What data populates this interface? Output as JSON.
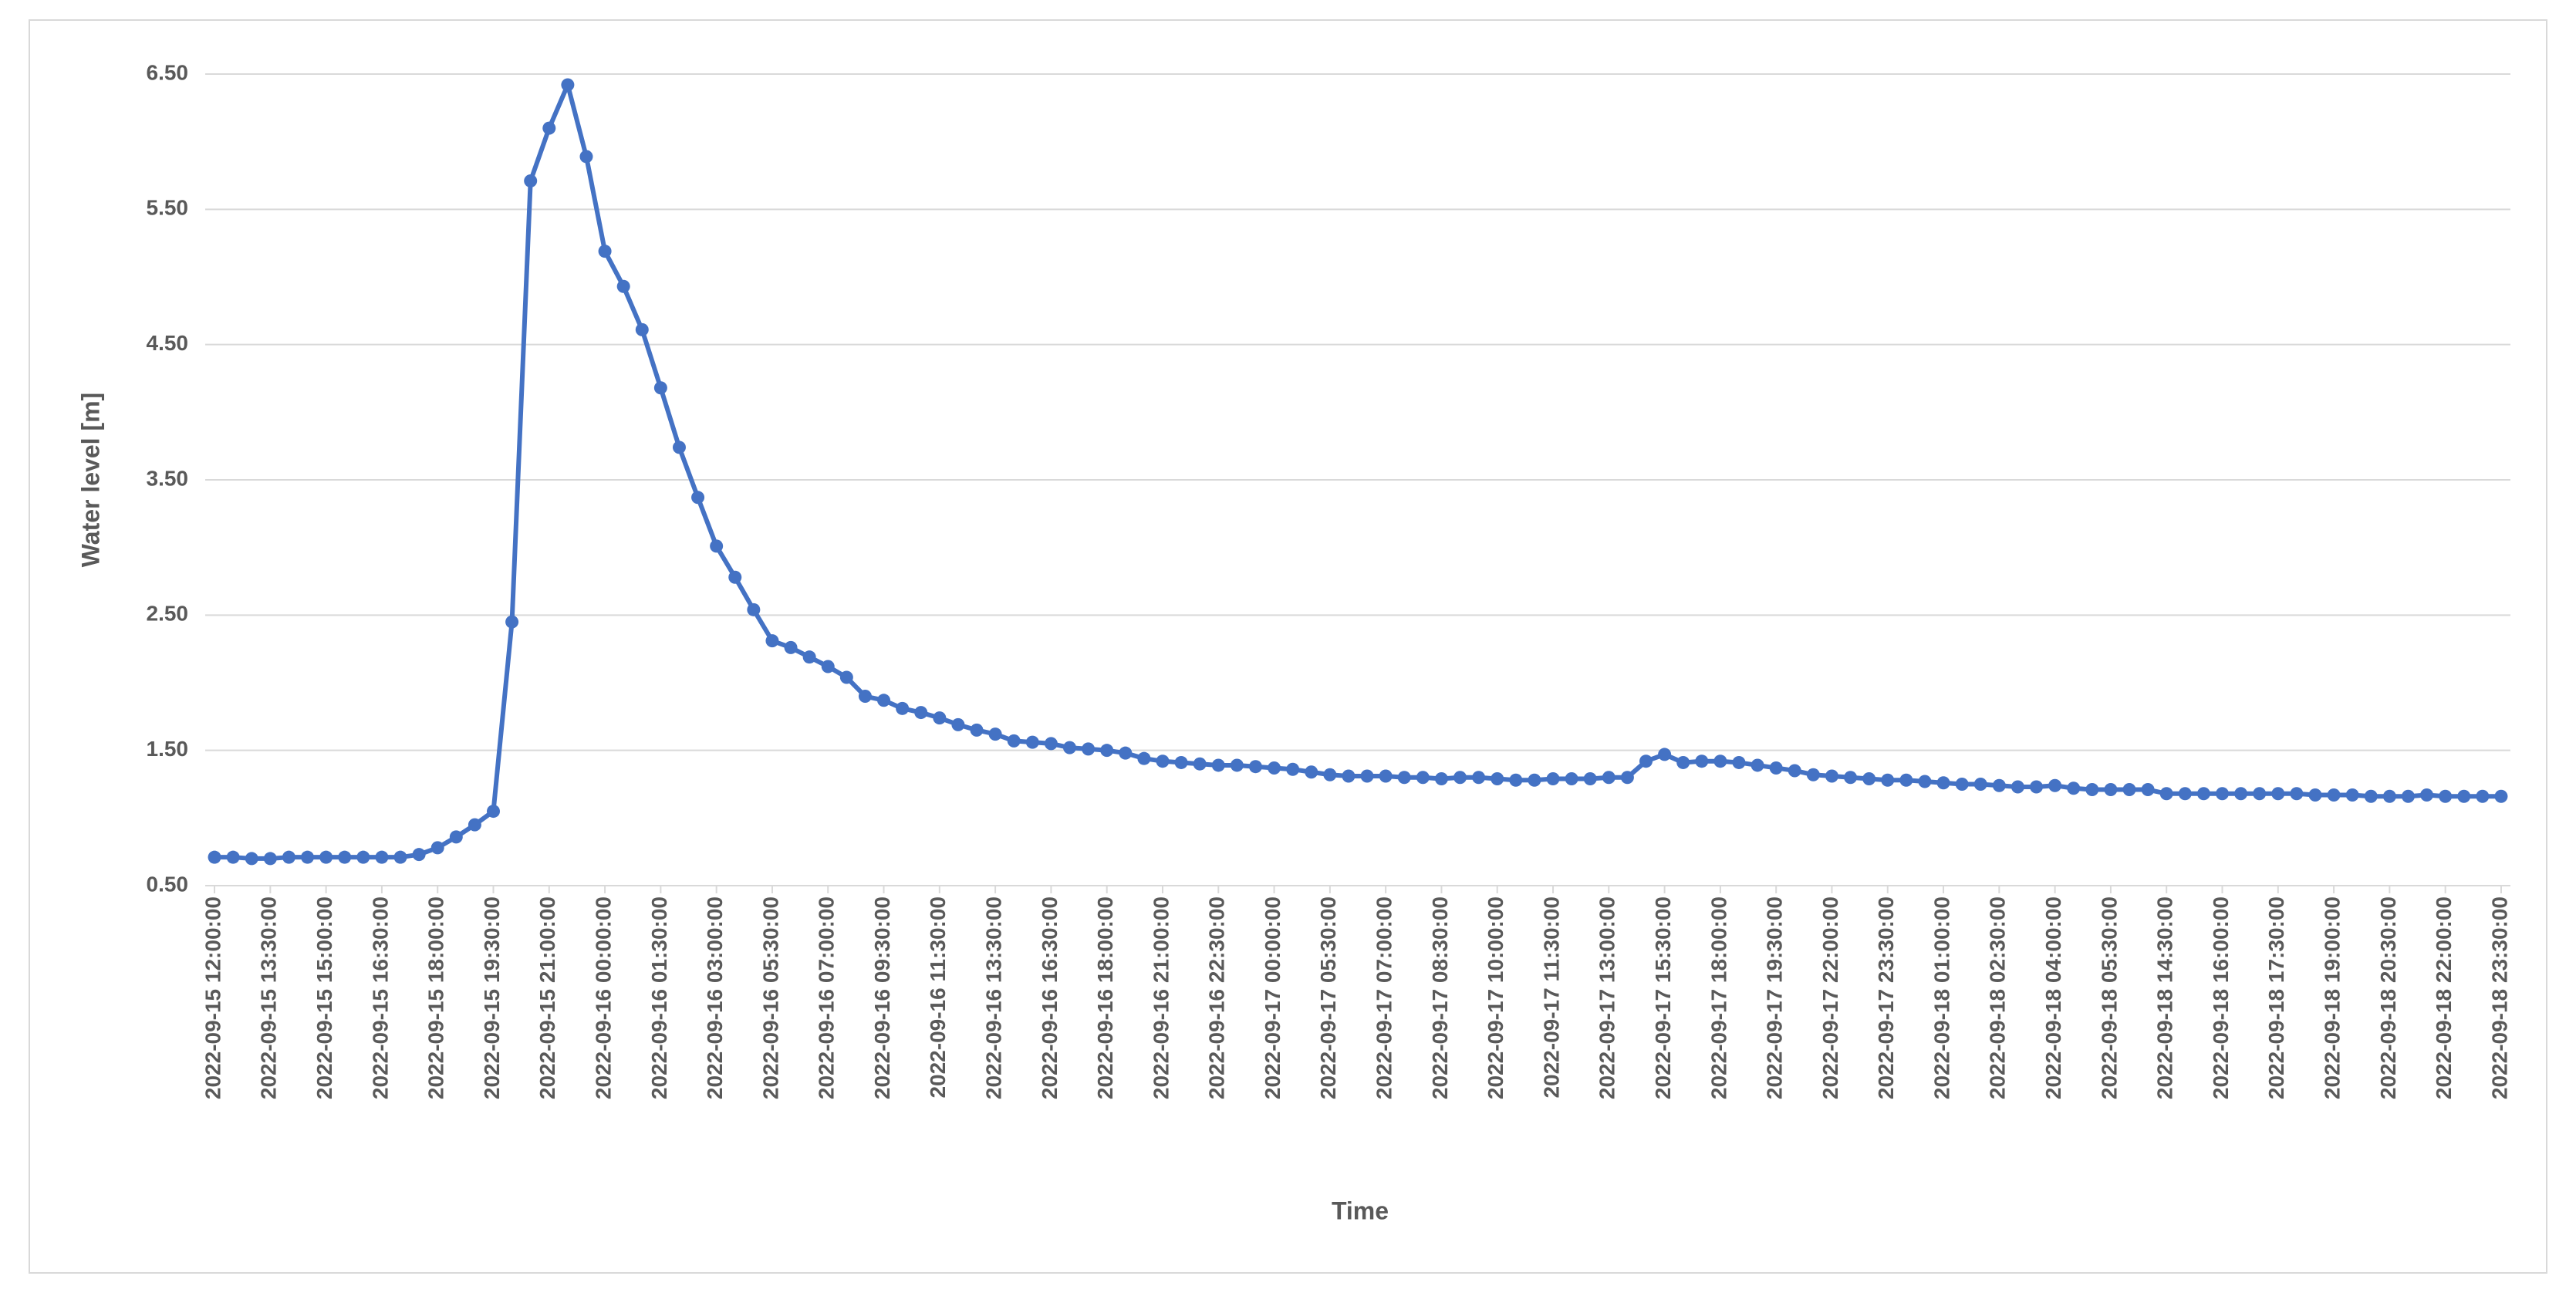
{
  "chart_data": {
    "type": "line",
    "y_label": "Water level [m]",
    "x_label": "Time",
    "color": "#4472c4",
    "grid": true,
    "ylim": [
      0.5,
      6.5
    ],
    "yticks": [
      {
        "value": 0.5,
        "label": "0.50"
      },
      {
        "value": 1.5,
        "label": "1.50"
      },
      {
        "value": 2.5,
        "label": "2.50"
      },
      {
        "value": 3.5,
        "label": "3.50"
      },
      {
        "value": 4.5,
        "label": "4.50"
      },
      {
        "value": 5.5,
        "label": "5.50"
      },
      {
        "value": 6.5,
        "label": "6.50"
      }
    ],
    "categories": [
      "2022-09-15 12:00:00",
      null,
      null,
      "2022-09-15 13:30:00",
      null,
      null,
      "2022-09-15 15:00:00",
      null,
      null,
      "2022-09-15 16:30:00",
      null,
      null,
      "2022-09-15 18:00:00",
      null,
      null,
      "2022-09-15 19:30:00",
      null,
      null,
      "2022-09-15 21:00:00",
      null,
      null,
      "2022-09-16 00:00:00",
      null,
      null,
      "2022-09-16 01:30:00",
      null,
      null,
      "2022-09-16 03:00:00",
      null,
      null,
      "2022-09-16 05:30:00",
      null,
      null,
      "2022-09-16 07:00:00",
      null,
      null,
      "2022-09-16 09:30:00",
      null,
      null,
      "2022-09-16 11:30:00",
      null,
      null,
      "2022-09-16 13:30:00",
      null,
      null,
      "2022-09-16 16:30:00",
      null,
      null,
      "2022-09-16 18:00:00",
      null,
      null,
      "2022-09-16 21:00:00",
      null,
      null,
      "2022-09-16 22:30:00",
      null,
      null,
      "2022-09-17 00:00:00",
      null,
      null,
      "2022-09-17 05:30:00",
      null,
      null,
      "2022-09-17 07:00:00",
      null,
      null,
      "2022-09-17 08:30:00",
      null,
      null,
      "2022-09-17 10:00:00",
      null,
      null,
      "2022-09-17 11:30:00",
      null,
      null,
      "2022-09-17 13:00:00",
      null,
      null,
      "2022-09-17 15:30:00",
      null,
      null,
      "2022-09-17 18:00:00",
      null,
      null,
      "2022-09-17 19:30:00",
      null,
      null,
      "2022-09-17 22:00:00",
      null,
      null,
      "2022-09-17 23:30:00",
      null,
      null,
      "2022-09-18 01:00:00",
      null,
      null,
      "2022-09-18 02:30:00",
      null,
      null,
      "2022-09-18 04:00:00",
      null,
      null,
      "2022-09-18 05:30:00",
      null,
      null,
      "2022-09-18 14:30:00",
      null,
      null,
      "2022-09-18 16:00:00",
      null,
      null,
      "2022-09-18 17:30:00",
      null,
      null,
      "2022-09-18 19:00:00",
      null,
      null,
      "2022-09-18 20:30:00",
      null,
      null,
      "2022-09-18 22:00:00",
      null,
      null,
      "2022-09-18 23:30:00"
    ],
    "values": [
      0.71,
      0.71,
      0.7,
      0.7,
      0.71,
      0.71,
      0.71,
      0.71,
      0.71,
      0.71,
      0.71,
      0.73,
      0.78,
      0.86,
      0.95,
      1.05,
      2.45,
      5.71,
      6.1,
      6.42,
      5.89,
      5.19,
      4.93,
      4.61,
      4.18,
      3.74,
      3.37,
      3.01,
      2.78,
      2.54,
      2.31,
      2.26,
      2.19,
      2.12,
      2.04,
      1.9,
      1.87,
      1.81,
      1.78,
      1.74,
      1.69,
      1.65,
      1.62,
      1.57,
      1.56,
      1.55,
      1.52,
      1.51,
      1.5,
      1.48,
      1.44,
      1.42,
      1.41,
      1.4,
      1.39,
      1.39,
      1.38,
      1.37,
      1.36,
      1.34,
      1.32,
      1.31,
      1.31,
      1.31,
      1.3,
      1.3,
      1.29,
      1.3,
      1.3,
      1.29,
      1.28,
      1.28,
      1.29,
      1.29,
      1.29,
      1.3,
      1.3,
      1.42,
      1.47,
      1.41,
      1.42,
      1.42,
      1.41,
      1.39,
      1.37,
      1.35,
      1.32,
      1.31,
      1.3,
      1.29,
      1.28,
      1.28,
      1.27,
      1.26,
      1.25,
      1.25,
      1.24,
      1.23,
      1.23,
      1.24,
      1.22,
      1.21,
      1.21,
      1.21,
      1.21,
      1.18,
      1.18,
      1.18,
      1.18,
      1.18,
      1.18,
      1.18,
      1.18,
      1.17,
      1.17,
      1.17,
      1.16,
      1.16,
      1.16,
      1.17,
      1.16,
      1.16,
      1.16,
      1.16
    ]
  }
}
